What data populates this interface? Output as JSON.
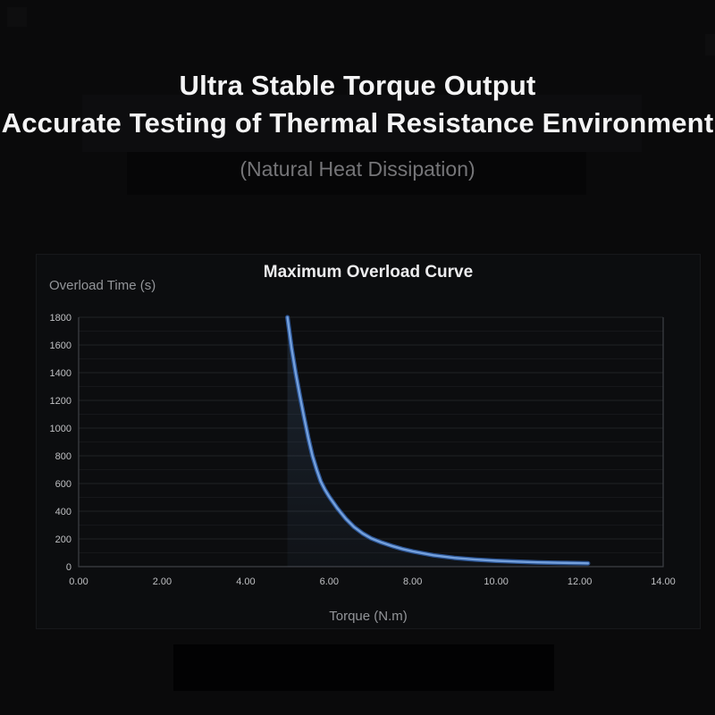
{
  "page": {
    "background": "#0a0a0b"
  },
  "header": {
    "title_line1": "Ultra Stable Torque Output",
    "title_line2": "Accurate Testing of Thermal Resistance Environment",
    "subtitle": "(Natural Heat Dissipation)",
    "title_color": "#f4f4f5",
    "subtitle_color": "#757578"
  },
  "chart_data": {
    "type": "area",
    "title": "Maximum Overload Curve",
    "xlabel": "Torque (N.m)",
    "ylabel": "Overload Time (s)",
    "xlim": [
      0,
      14
    ],
    "ylim": [
      0,
      1800
    ],
    "x_ticks": [
      {
        "value": 0,
        "label": "0.00"
      },
      {
        "value": 2,
        "label": "2.00"
      },
      {
        "value": 4,
        "label": "4.00"
      },
      {
        "value": 6,
        "label": "6.00"
      },
      {
        "value": 8,
        "label": "8.00"
      },
      {
        "value": 10,
        "label": "10.00"
      },
      {
        "value": 12,
        "label": "12.00"
      },
      {
        "value": 14,
        "label": "14.00"
      }
    ],
    "y_ticks": [
      0,
      200,
      400,
      600,
      800,
      1000,
      1200,
      1400,
      1600,
      1800
    ],
    "grid": {
      "minor_step_y": 100,
      "major_step_y": 200,
      "minor_color": "#16171a",
      "major_color": "#212326",
      "border_color": "#3e4146",
      "legend": "none"
    },
    "series": [
      {
        "name": "Maximum Overload Curve",
        "line_color": "#74a0dc",
        "line_edge_color": "#2b5493",
        "fill_color": "#5c84b4",
        "fill_opacity_top": 0.2,
        "fill_opacity_bottom": 0.05,
        "points": [
          [
            5.0,
            1800
          ],
          [
            5.05,
            1690
          ],
          [
            5.1,
            1580
          ],
          [
            5.2,
            1395
          ],
          [
            5.3,
            1230
          ],
          [
            5.4,
            1075
          ],
          [
            5.5,
            930
          ],
          [
            5.6,
            800
          ],
          [
            5.7,
            700
          ],
          [
            5.8,
            615
          ],
          [
            5.9,
            555
          ],
          [
            6.0,
            505
          ],
          [
            6.2,
            420
          ],
          [
            6.4,
            345
          ],
          [
            6.6,
            285
          ],
          [
            6.8,
            240
          ],
          [
            7.0,
            205
          ],
          [
            7.25,
            175
          ],
          [
            7.5,
            150
          ],
          [
            7.75,
            128
          ],
          [
            8.0,
            110
          ],
          [
            8.5,
            82
          ],
          [
            9.0,
            63
          ],
          [
            9.5,
            51
          ],
          [
            10.0,
            42
          ],
          [
            10.5,
            36
          ],
          [
            11.0,
            31
          ],
          [
            11.5,
            28
          ],
          [
            12.0,
            25
          ],
          [
            12.2,
            24
          ]
        ]
      }
    ]
  }
}
